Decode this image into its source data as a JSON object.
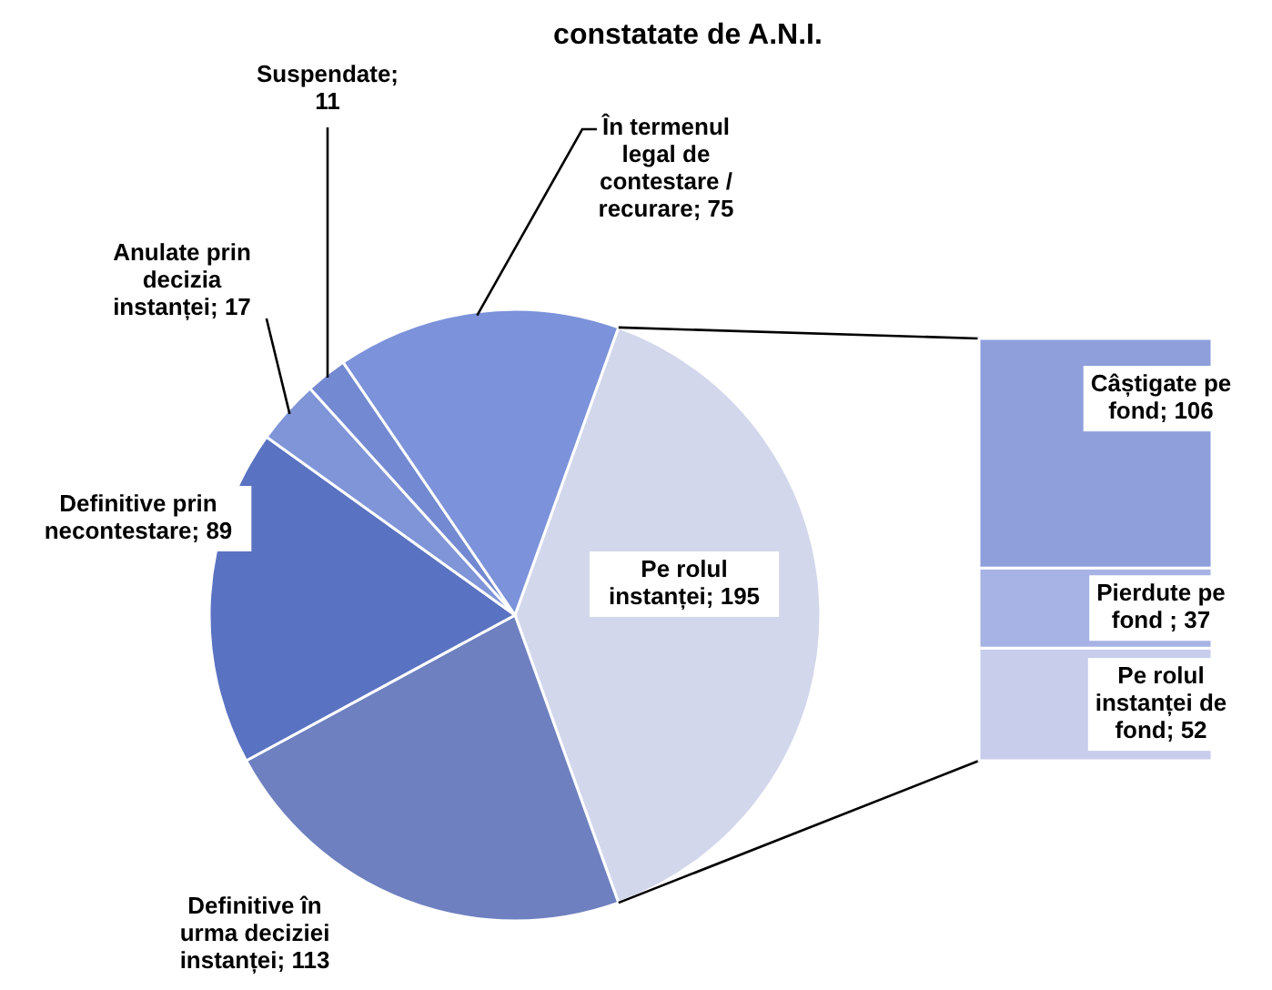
{
  "chart_data": [
    {
      "type": "pie",
      "title": "constatate de A.N.I.",
      "categories": [
        "Pe rolul instanței",
        "Definitive în urma deciziei instanței",
        "Definitive prin necontestare",
        "Anulate prin decizia instanței",
        "Suspendate",
        "În termenul legal de contestare / recurare"
      ],
      "values": [
        195,
        113,
        89,
        17,
        11,
        75
      ],
      "colors": [
        "#d3d7ec",
        "#6e80bf",
        "#5a72c2",
        "#8095d8",
        "#7389d2",
        "#7c92da"
      ],
      "value_labels": [
        "; 195",
        "; 113",
        "; 89",
        "; 17",
        "; 11",
        "; 75"
      ]
    },
    {
      "type": "bar",
      "stacked": true,
      "categories": [
        null
      ],
      "series": [
        {
          "name": "Pe rolul instanței de fond",
          "color": "#c8cdec",
          "values": [
            52
          ],
          "value_labels": [
            "; 52"
          ]
        },
        {
          "name": "Pierdute pe fond",
          "color": "#a7b3e4",
          "values": [
            37
          ],
          "value_labels": [
            " ; 37"
          ]
        },
        {
          "name": "Câștigate pe fond",
          "color": "#8e9fdc",
          "values": [
            106
          ],
          "value_labels": [
            "; 106"
          ]
        }
      ]
    }
  ]
}
